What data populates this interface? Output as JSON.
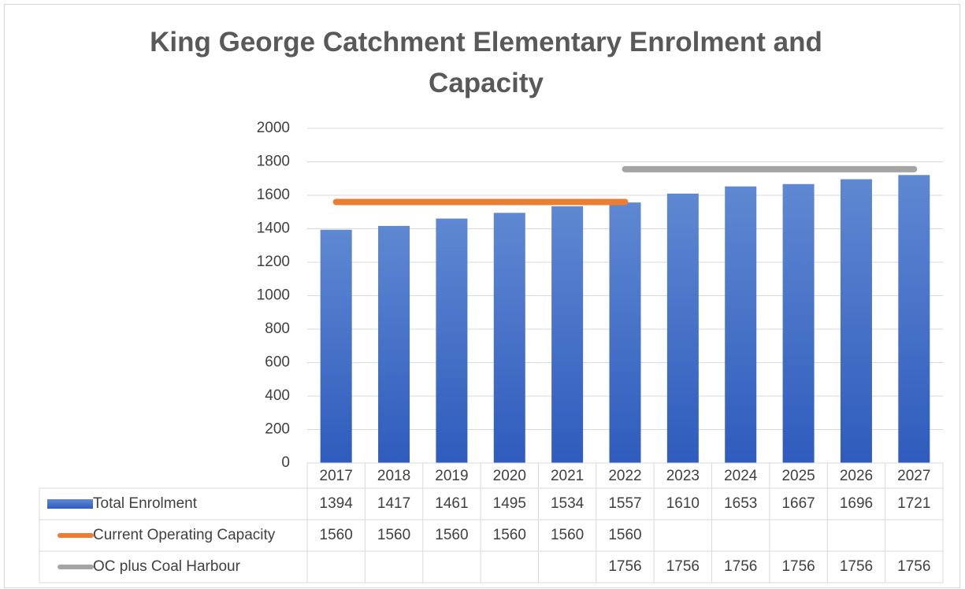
{
  "chart_data": {
    "type": "bar",
    "title": "King George Catchment Elementary Enrolment and Capacity",
    "categories": [
      "2017",
      "2018",
      "2019",
      "2020",
      "2021",
      "2022",
      "2023",
      "2024",
      "2025",
      "2026",
      "2027"
    ],
    "series": [
      {
        "name": "Total Enrolment",
        "type": "bar",
        "color": "#4472c4",
        "values": [
          1394,
          1417,
          1461,
          1495,
          1534,
          1557,
          1610,
          1653,
          1667,
          1696,
          1721
        ]
      },
      {
        "name": "Current Operating Capacity",
        "type": "line",
        "color": "#ed7d31",
        "values": [
          1560,
          1560,
          1560,
          1560,
          1560,
          1560,
          null,
          null,
          null,
          null,
          null
        ]
      },
      {
        "name": "OC plus Coal Harbour",
        "type": "line",
        "color": "#a5a5a5",
        "values": [
          null,
          null,
          null,
          null,
          null,
          1756,
          1756,
          1756,
          1756,
          1756,
          1756
        ]
      }
    ],
    "ylim": [
      0,
      2000
    ],
    "yticks": [
      0,
      200,
      400,
      600,
      800,
      1000,
      1200,
      1400,
      1600,
      1800,
      2000
    ],
    "grid": true,
    "data_table": true
  }
}
